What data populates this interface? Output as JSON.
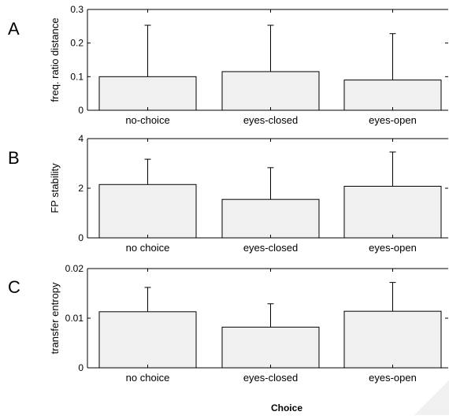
{
  "chart_data": [
    {
      "type": "bar",
      "panel": "A",
      "categories": [
        "no-choice",
        "eyes-closed",
        "eyes-open"
      ],
      "values": [
        0.1,
        0.115,
        0.09
      ],
      "errors": [
        0.153,
        0.138,
        0.138
      ],
      "ylabel": "freq. ratio distance",
      "ylim": [
        0,
        0.3
      ],
      "yticks": [
        0,
        0.1,
        0.2,
        0.3
      ],
      "ytick_labels": [
        "0",
        "0.1",
        "0.2",
        "0.3"
      ],
      "bar_color": "#f0f0f0"
    },
    {
      "type": "bar",
      "panel": "B",
      "categories": [
        "no choice",
        "eyes-closed",
        "eyes-open"
      ],
      "values": [
        2.15,
        1.55,
        2.08
      ],
      "errors": [
        1.02,
        1.28,
        1.38
      ],
      "ylabel": "FP stability",
      "ylim": [
        0,
        4
      ],
      "yticks": [
        0,
        2,
        4
      ],
      "ytick_labels": [
        "0",
        "2",
        "4"
      ],
      "bar_color": "#f0f0f0"
    },
    {
      "type": "bar",
      "panel": "C",
      "categories": [
        "no choice",
        "eyes-closed",
        "eyes-open"
      ],
      "values": [
        0.0113,
        0.0082,
        0.0114
      ],
      "errors": [
        0.0049,
        0.0047,
        0.0058
      ],
      "ylabel": "transfer entropy",
      "ylim": [
        0,
        0.02
      ],
      "yticks": [
        0,
        0.01,
        0.02
      ],
      "ytick_labels": [
        "0",
        "0.01",
        "0.02"
      ],
      "bar_color": "#f0f0f0"
    }
  ],
  "xlabel": "Choice"
}
